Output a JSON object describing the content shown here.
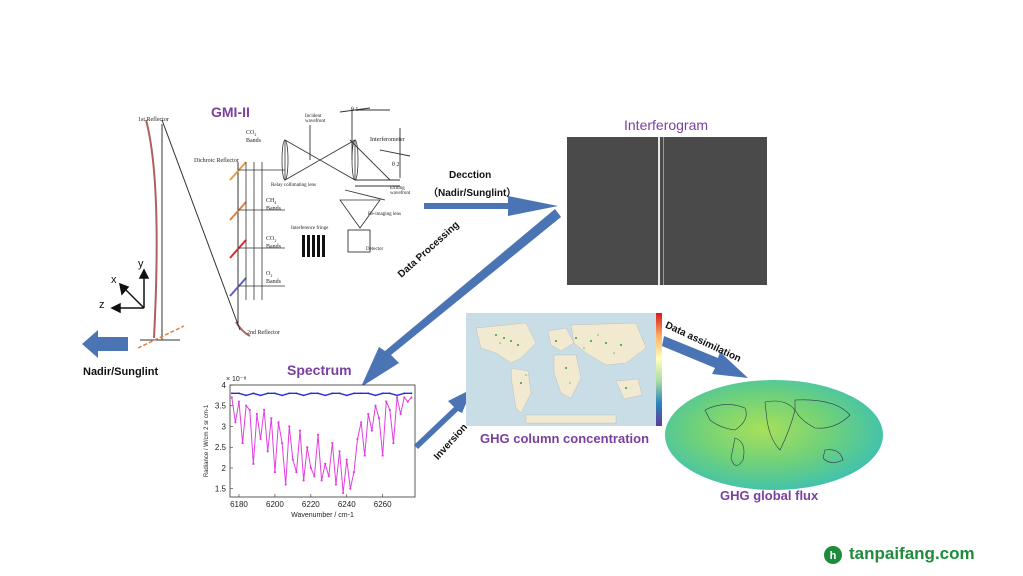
{
  "gmi_title": "GMI-II",
  "reflector_1": "1st Reflector",
  "reflector_2": "2nd Reflector",
  "dichroic": "Dichroic Reflector",
  "bands": [
    {
      "gas": "CO",
      "sub": "2",
      "suffix": "Bands"
    },
    {
      "gas": "CH",
      "sub": "4",
      "suffix": "Bands"
    },
    {
      "gas": "CO",
      "sub": "2",
      "suffix": "Bands"
    },
    {
      "gas": "O",
      "sub": "2",
      "suffix": "Bands"
    }
  ],
  "optics": {
    "incident": "Incident wavefront",
    "interferometer": "Interferometer",
    "relay": "Relay collimating lens",
    "exiting": "Exiting wavefront",
    "reimaging": "Re-imaging lens",
    "fringes": "Interference fringe",
    "detector": "Detector",
    "theta1": "θ 1",
    "theta2": "θ 2"
  },
  "axes": {
    "x": "x",
    "y": "y",
    "z": "z"
  },
  "nadir_label": "Nadir/Sunglint",
  "detection_label": "Decction",
  "detection_sub": "（Nadir/Sunglint）",
  "interferogram_title": "Interferogram",
  "data_processing": "Data Processing",
  "spectrum_title": "Spectrum",
  "inversion": "Inversion",
  "ghg_column": "GHG column concentration",
  "data_assimilation": "Data assimilation",
  "ghg_flux": "GHG global flux",
  "watermark": "tanpaifang.com",
  "colors": {
    "purple": "#7b3f9e",
    "arrow": "#4a74b4",
    "watermark": "#1e8c3a"
  },
  "chart_data": {
    "type": "line",
    "title": "",
    "xlabel": "Wavenumber / cm-1",
    "ylabel": "Radiance / W/cm 2 sr cm-1",
    "exponent": "× 10⁻⁸",
    "xlim": [
      6175,
      6278
    ],
    "ylim": [
      1.3,
      4.0
    ],
    "xticks": [
      6180,
      6200,
      6220,
      6240,
      6260
    ],
    "yticks": [
      1.5,
      2,
      2.5,
      3,
      3.5,
      4
    ],
    "series": [
      {
        "color": "#2a2ad0",
        "x": [
          6176,
          6180,
          6184,
          6188,
          6192,
          6196,
          6200,
          6204,
          6208,
          6212,
          6216,
          6220,
          6224,
          6228,
          6232,
          6236,
          6240,
          6244,
          6248,
          6252,
          6256,
          6260,
          6264,
          6268,
          6272,
          6276
        ],
        "y": [
          3.8,
          3.8,
          3.75,
          3.8,
          3.75,
          3.8,
          3.8,
          3.75,
          3.8,
          3.8,
          3.75,
          3.8,
          3.8,
          3.75,
          3.8,
          3.8,
          3.75,
          3.8,
          3.8,
          3.8,
          3.75,
          3.8,
          3.8,
          3.75,
          3.8,
          3.8
        ]
      },
      {
        "color": "#e040e0",
        "x": [
          6176,
          6178,
          6180,
          6182,
          6184,
          6186,
          6188,
          6190,
          6192,
          6194,
          6196,
          6198,
          6200,
          6202,
          6204,
          6206,
          6208,
          6210,
          6212,
          6214,
          6216,
          6218,
          6220,
          6222,
          6224,
          6226,
          6228,
          6230,
          6232,
          6234,
          6236,
          6238,
          6240,
          6242,
          6244,
          6246,
          6248,
          6250,
          6252,
          6254,
          6256,
          6258,
          6260,
          6262,
          6264,
          6266,
          6268,
          6270,
          6272,
          6274,
          6276
        ],
        "y": [
          3.7,
          3.1,
          3.6,
          2.6,
          3.5,
          3.4,
          2.1,
          3.3,
          2.7,
          3.4,
          2.4,
          3.2,
          1.9,
          3.1,
          2.6,
          1.6,
          3.0,
          2.2,
          1.9,
          2.9,
          1.7,
          2.5,
          2.0,
          1.8,
          2.8,
          1.7,
          2.1,
          1.8,
          2.6,
          1.6,
          2.4,
          1.4,
          2.2,
          1.5,
          1.9,
          2.7,
          3.1,
          2.3,
          3.3,
          2.9,
          3.5,
          3.2,
          2.3,
          3.6,
          3.4,
          2.6,
          3.7,
          3.3,
          3.7,
          3.6,
          3.7
        ]
      }
    ]
  }
}
